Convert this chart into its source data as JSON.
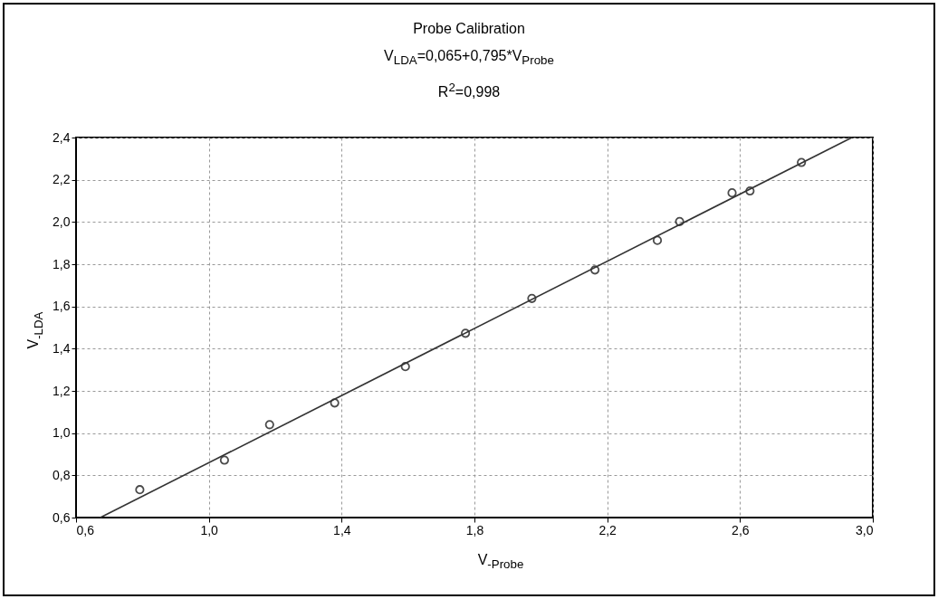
{
  "chart_data": {
    "type": "scatter",
    "title": "Probe Calibration",
    "annotations": [
      "V$_{LDA}$=0,065+0,795*V$_{Probe}$",
      "R$^{2}$=0,998"
    ],
    "xlabel": "V$_{-Probe}$",
    "ylabel": "V$_{-LDA}$",
    "xlim": [
      0.6,
      3.0
    ],
    "xticks": [
      {
        "value": 0.6,
        "label": "0,6"
      },
      {
        "value": 1.0,
        "label": "1,0"
      },
      {
        "value": 1.4,
        "label": "1,4"
      },
      {
        "value": 1.8,
        "label": "1,8"
      },
      {
        "value": 2.2,
        "label": "2,2"
      },
      {
        "value": 2.6,
        "label": "2,6"
      },
      {
        "value": 3.0,
        "label": "3,0"
      }
    ],
    "ylim": [
      0.6,
      2.4
    ],
    "yticks": [
      {
        "value": 0.6,
        "label": "0,6"
      },
      {
        "value": 0.8,
        "label": "0,8"
      },
      {
        "value": 1.0,
        "label": "1,0"
      },
      {
        "value": 1.2,
        "label": "1,2"
      },
      {
        "value": 1.4,
        "label": "1,4"
      },
      {
        "value": 1.6,
        "label": "1,6"
      },
      {
        "value": 1.8,
        "label": "1,8"
      },
      {
        "value": 2.0,
        "label": "2,0"
      },
      {
        "value": 2.2,
        "label": "2,2"
      },
      {
        "value": 2.4,
        "label": "2,4"
      }
    ],
    "grid": true,
    "series": [
      {
        "marker": "circle",
        "color": "#000000",
        "x": [
          0.792,
          1.047,
          1.183,
          1.379,
          1.592,
          1.773,
          1.973,
          2.163,
          2.351,
          2.418,
          2.576,
          2.63,
          2.785
        ],
        "values": [
          0.732,
          0.872,
          1.04,
          1.143,
          1.315,
          1.473,
          1.638,
          1.773,
          1.913,
          2.002,
          2.138,
          2.147,
          2.282
        ]
      },
      {
        "type": "line",
        "color": "#333333",
        "x": [
          0.673,
          2.937
        ],
        "values": [
          0.6,
          2.4
        ]
      }
    ]
  }
}
